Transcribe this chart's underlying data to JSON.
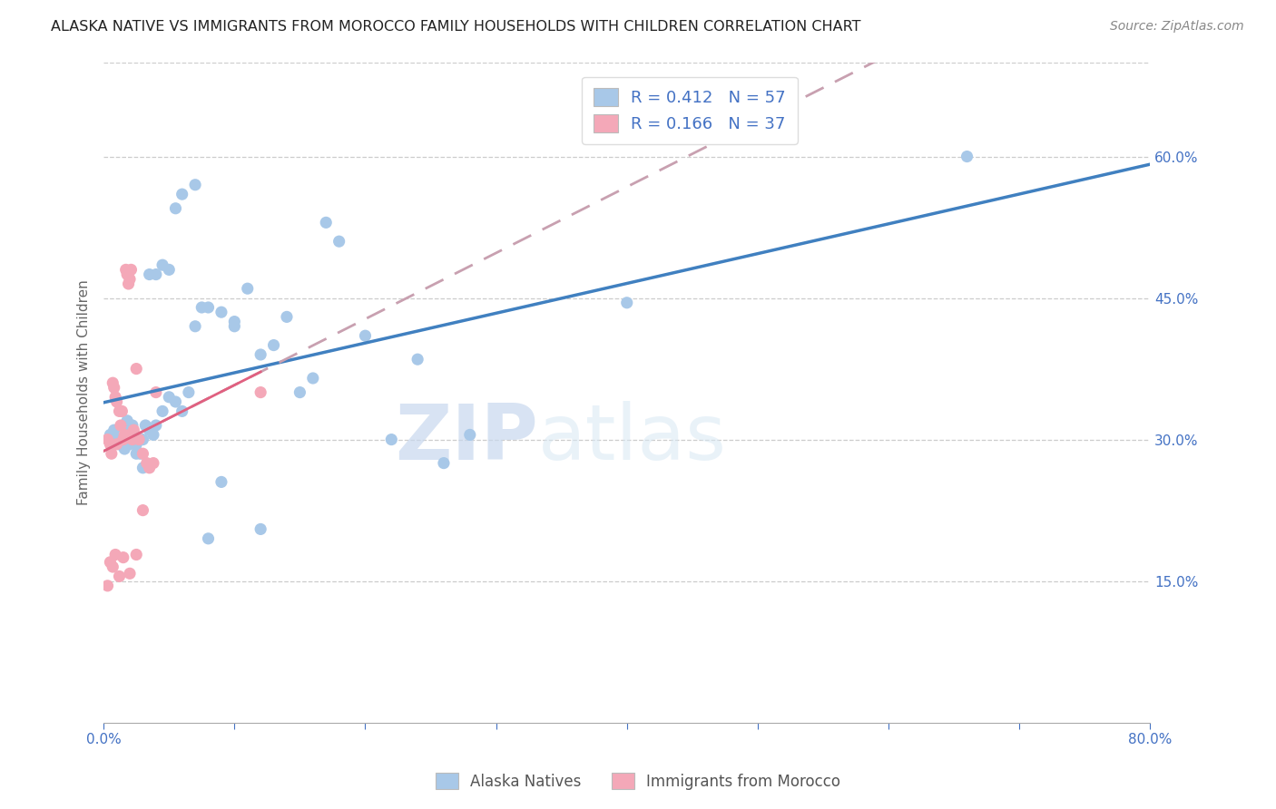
{
  "title": "ALASKA NATIVE VS IMMIGRANTS FROM MOROCCO FAMILY HOUSEHOLDS WITH CHILDREN CORRELATION CHART",
  "source": "Source: ZipAtlas.com",
  "ylabel": "Family Households with Children",
  "xlim": [
    0.0,
    0.8
  ],
  "ylim": [
    0.0,
    0.7
  ],
  "x_ticks": [
    0.0,
    0.1,
    0.2,
    0.3,
    0.4,
    0.5,
    0.6,
    0.7,
    0.8
  ],
  "x_tick_labels": [
    "0.0%",
    "",
    "",
    "",
    "",
    "",
    "",
    "",
    "80.0%"
  ],
  "y_ticks_right": [
    0.15,
    0.3,
    0.45,
    0.6
  ],
  "y_tick_labels_right": [
    "15.0%",
    "30.0%",
    "45.0%",
    "60.0%"
  ],
  "blue_color": "#a8c8e8",
  "pink_color": "#f4a8b8",
  "trendline_blue": "#4080c0",
  "trendline_pink": "#e06080",
  "trendline_pink_dashed": "#c8a0b0",
  "alaska_native_x": [
    0.005,
    0.008,
    0.01,
    0.012,
    0.014,
    0.016,
    0.018,
    0.02,
    0.022,
    0.025,
    0.028,
    0.03,
    0.032,
    0.035,
    0.038,
    0.04,
    0.045,
    0.05,
    0.055,
    0.06,
    0.065,
    0.07,
    0.075,
    0.08,
    0.09,
    0.1,
    0.11,
    0.12,
    0.13,
    0.14,
    0.15,
    0.16,
    0.17,
    0.18,
    0.2,
    0.22,
    0.24,
    0.26,
    0.28,
    0.01,
    0.015,
    0.02,
    0.025,
    0.03,
    0.035,
    0.04,
    0.045,
    0.05,
    0.055,
    0.06,
    0.07,
    0.08,
    0.09,
    0.1,
    0.12,
    0.66,
    0.4
  ],
  "alaska_native_y": [
    0.305,
    0.31,
    0.3,
    0.295,
    0.3,
    0.29,
    0.32,
    0.31,
    0.315,
    0.295,
    0.285,
    0.3,
    0.315,
    0.31,
    0.305,
    0.315,
    0.33,
    0.345,
    0.34,
    0.33,
    0.35,
    0.42,
    0.44,
    0.44,
    0.435,
    0.42,
    0.46,
    0.39,
    0.4,
    0.43,
    0.35,
    0.365,
    0.53,
    0.51,
    0.41,
    0.3,
    0.385,
    0.275,
    0.305,
    0.3,
    0.315,
    0.295,
    0.285,
    0.27,
    0.475,
    0.475,
    0.485,
    0.48,
    0.545,
    0.56,
    0.57,
    0.195,
    0.255,
    0.425,
    0.205,
    0.6,
    0.445
  ],
  "morocco_x": [
    0.003,
    0.005,
    0.006,
    0.007,
    0.008,
    0.009,
    0.01,
    0.01,
    0.012,
    0.013,
    0.014,
    0.015,
    0.016,
    0.017,
    0.018,
    0.019,
    0.02,
    0.021,
    0.022,
    0.023,
    0.025,
    0.027,
    0.03,
    0.033,
    0.035,
    0.038,
    0.04,
    0.003,
    0.005,
    0.007,
    0.009,
    0.012,
    0.015,
    0.02,
    0.025,
    0.03,
    0.12
  ],
  "morocco_y": [
    0.3,
    0.295,
    0.285,
    0.36,
    0.355,
    0.345,
    0.34,
    0.295,
    0.33,
    0.315,
    0.33,
    0.3,
    0.305,
    0.48,
    0.475,
    0.465,
    0.47,
    0.48,
    0.3,
    0.31,
    0.375,
    0.3,
    0.285,
    0.275,
    0.27,
    0.275,
    0.35,
    0.145,
    0.17,
    0.165,
    0.178,
    0.155,
    0.175,
    0.158,
    0.178,
    0.225,
    0.35
  ]
}
